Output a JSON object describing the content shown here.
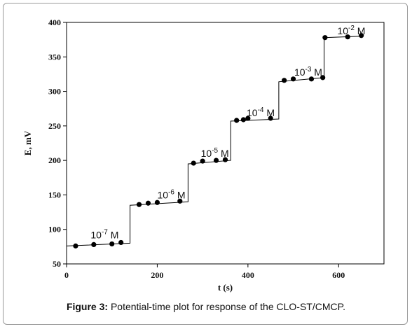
{
  "chart_data": {
    "type": "line",
    "xlabel": "t (s)",
    "ylabel": "E, mV",
    "xlim": [
      0,
      700
    ],
    "ylim": [
      50,
      400
    ],
    "xticks": [
      0,
      200,
      400,
      600
    ],
    "yticks": [
      50,
      100,
      150,
      200,
      250,
      300,
      350,
      400
    ],
    "grid": false,
    "legend": "none",
    "step_line": {
      "x": [
        0,
        140,
        140,
        268,
        268,
        362,
        362,
        468,
        468,
        568,
        568,
        652
      ],
      "y": [
        76,
        80,
        135,
        140,
        195,
        200,
        257,
        260,
        314,
        320,
        378,
        380
      ]
    },
    "points": {
      "x": [
        20,
        60,
        100,
        120,
        160,
        180,
        200,
        250,
        280,
        300,
        330,
        350,
        375,
        390,
        400,
        450,
        480,
        500,
        540,
        565,
        570,
        620,
        650
      ],
      "y": [
        76,
        78,
        79,
        81,
        136,
        138,
        139,
        141,
        196,
        199,
        200,
        201,
        258,
        259,
        261,
        261,
        316,
        318,
        318,
        320,
        378,
        379,
        381
      ]
    },
    "annotations": [
      {
        "base": "10",
        "exp": "-7",
        "unit": "M",
        "x": 115,
        "y": 87
      },
      {
        "base": "10",
        "exp": "-6",
        "unit": "M",
        "x": 262,
        "y": 145
      },
      {
        "base": "10",
        "exp": "-5",
        "unit": "M",
        "x": 358,
        "y": 205
      },
      {
        "base": "10",
        "exp": "-4",
        "unit": "M",
        "x": 459,
        "y": 264
      },
      {
        "base": "10",
        "exp": "-3",
        "unit": "M",
        "x": 564,
        "y": 323
      },
      {
        "base": "10",
        "exp": "-2",
        "unit": "M",
        "x": 659,
        "y": 383
      }
    ]
  },
  "caption": {
    "label": "Figure 3:",
    "text": " Potential-time plot for response of the CLO-ST/CMCP."
  },
  "colors": {
    "line": "#000000",
    "marker": "#000000",
    "axis": "#000000"
  }
}
